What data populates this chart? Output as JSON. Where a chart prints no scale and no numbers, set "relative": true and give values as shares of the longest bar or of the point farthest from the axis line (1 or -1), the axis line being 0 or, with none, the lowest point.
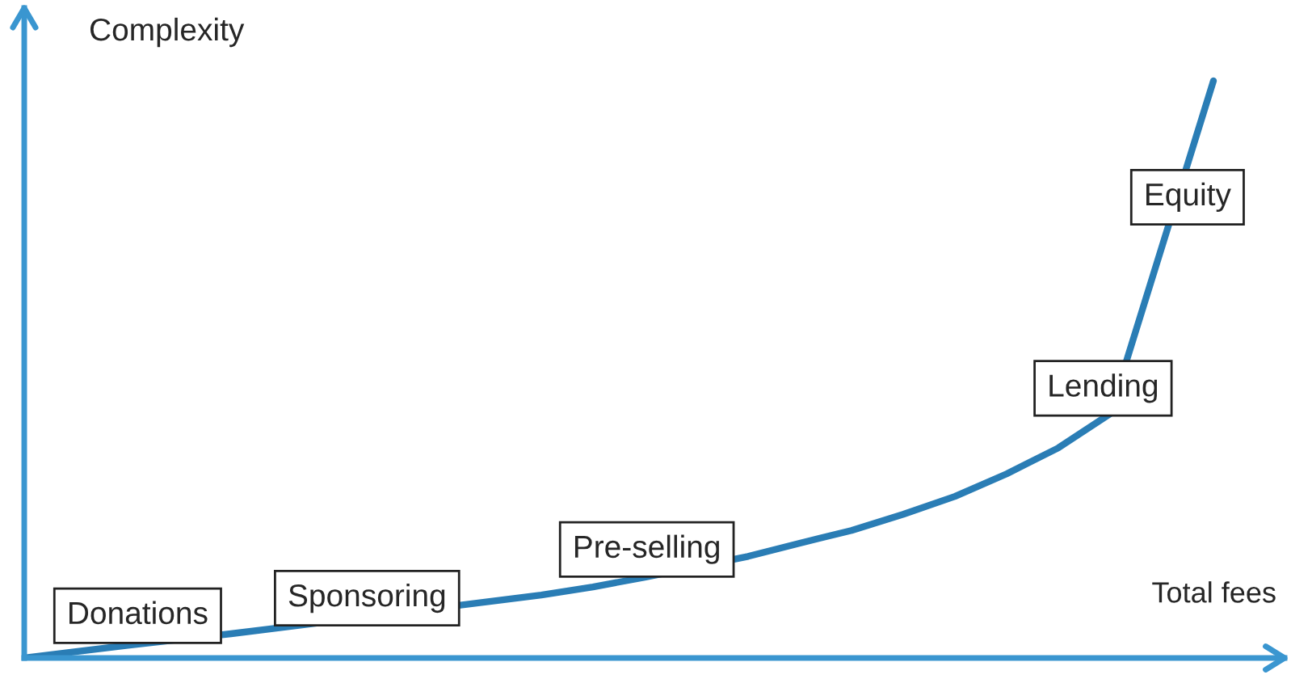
{
  "chart_data": {
    "type": "line",
    "relative": true,
    "xlabel": "Total fees",
    "ylabel": "Complexity",
    "categories": [
      null,
      null,
      null,
      null,
      null,
      null,
      null,
      null,
      null,
      null,
      null,
      null,
      null,
      null,
      null,
      null,
      null,
      null,
      null,
      null,
      null,
      null,
      null,
      null
    ],
    "series": [
      {
        "color": "#2a7db5",
        "values": [
          0,
          0.011,
          0.022,
          null,
          0.042,
          0.053,
          null,
          null,
          null,
          0.098,
          0.109,
          0.123,
          0.14,
          null,
          0.176,
          0.199,
          0.221,
          0.249,
          0.28,
          0.319,
          0.364,
          0.423,
          null,
          1.0
        ]
      }
    ],
    "annotations": [
      "Donations",
      "Sponsoring",
      "Pre-selling",
      "Lending",
      "Equity"
    ]
  }
}
